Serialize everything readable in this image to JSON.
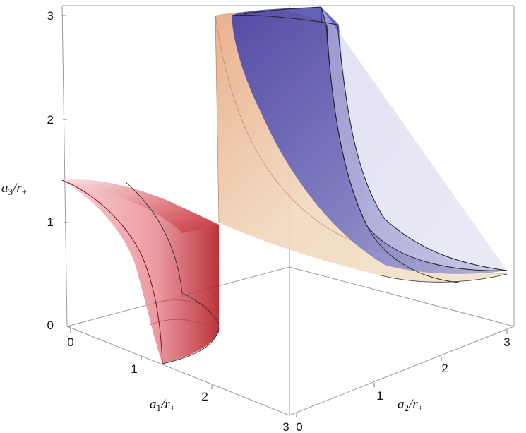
{
  "chart_data": {
    "type": "surface3d",
    "title": "",
    "axes": {
      "x": {
        "label_main": "a",
        "label_sub": "1",
        "label_tail": "/r",
        "label_tail_sub": "+",
        "range": [
          0,
          3
        ],
        "ticks": [
          "0",
          "1",
          "2",
          "3"
        ]
      },
      "y": {
        "label_main": "a",
        "label_sub": "2",
        "label_tail": "/r",
        "label_tail_sub": "+",
        "range": [
          0,
          3
        ],
        "ticks": [
          "0",
          "1",
          "2",
          "3"
        ]
      },
      "z": {
        "label_main": "a",
        "label_sub": "3",
        "label_tail": "/r",
        "label_tail_sub": "+",
        "range": [
          0,
          3
        ],
        "ticks": [
          "0",
          "1",
          "2",
          "3"
        ]
      }
    },
    "box": true,
    "series": [
      {
        "color": "#c8141e",
        "shape": "quarter-cylinder sector",
        "a2_range": [
          0,
          0
        ],
        "a1_range": [
          0,
          1.4
        ],
        "a3_max": 1.4
      },
      {
        "color": "#d08a4a",
        "shape": "sheet",
        "a1_range": [
          1.4,
          1.4
        ],
        "a2_range": [
          0.05,
          3.0
        ],
        "a3_range": [
          0.4,
          3.0
        ]
      },
      {
        "color": "#1a1aa0",
        "shape": "sheet",
        "a1_range": [
          1.4,
          1.6
        ],
        "a2_range": [
          0.4,
          3.0
        ],
        "a3_range": [
          0.5,
          3.0
        ]
      }
    ]
  }
}
